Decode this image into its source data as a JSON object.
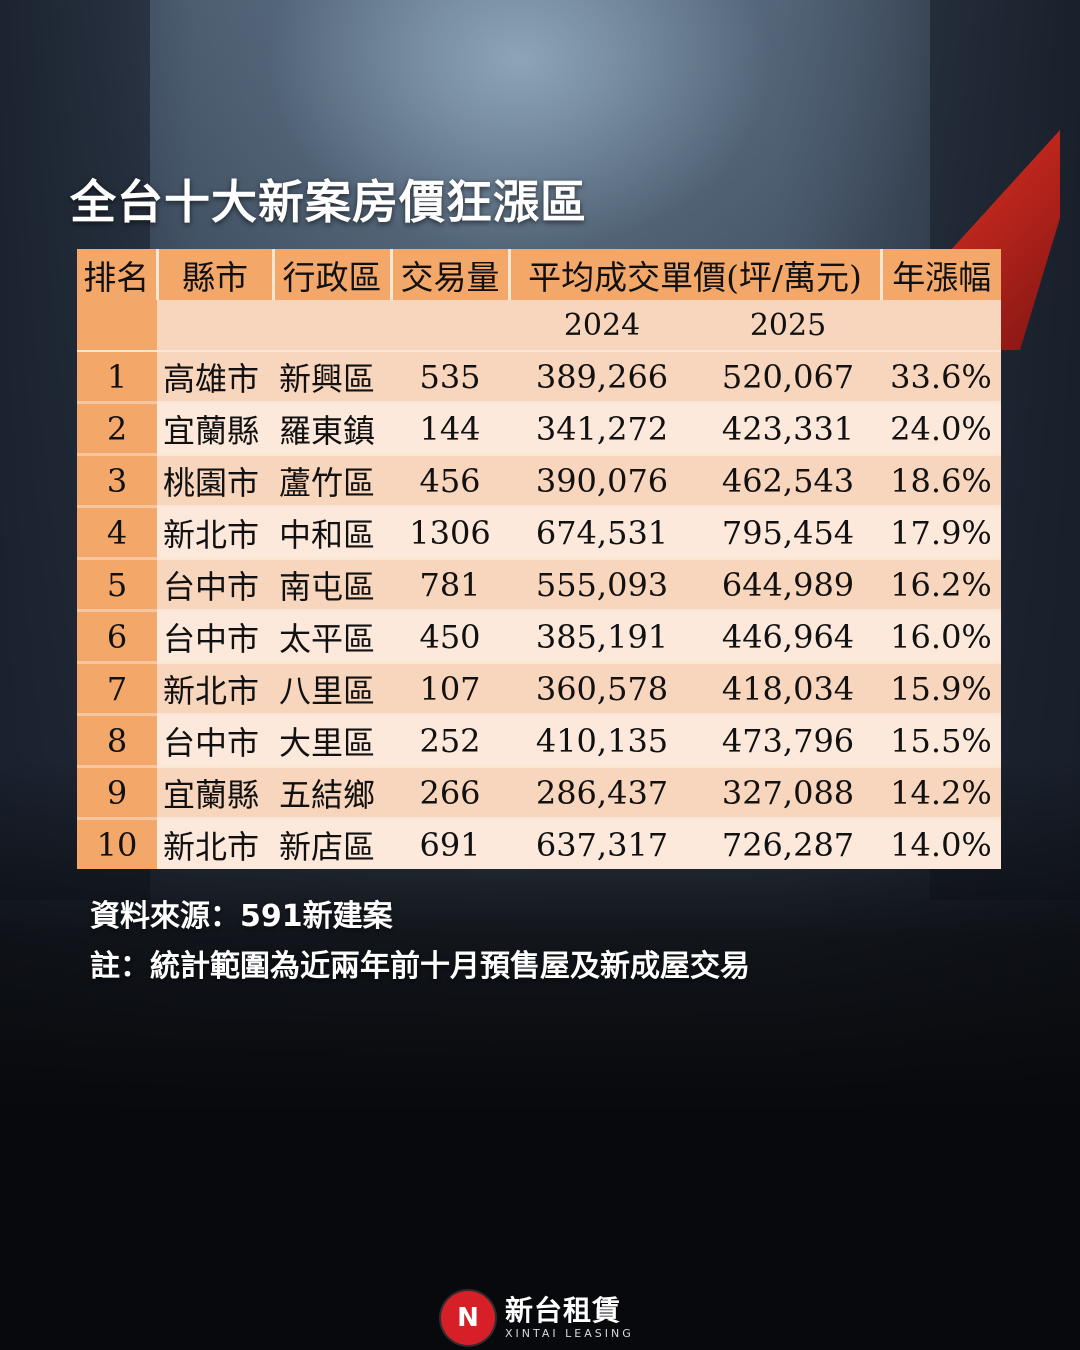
{
  "title": "全台十大新案房價狂漲區",
  "table": {
    "headers": [
      "排名",
      "縣市",
      "行政區",
      "交易量",
      "平均成交單價(坪/萬元)",
      "年漲幅"
    ],
    "years": [
      "2024",
      "2025"
    ],
    "rows": [
      {
        "rank": "1",
        "city": "高雄市",
        "district": "新興區",
        "volume": "535",
        "p2024": "389,266",
        "p2025": "520,067",
        "growth": "33.6%"
      },
      {
        "rank": "2",
        "city": "宜蘭縣",
        "district": "羅東鎮",
        "volume": "144",
        "p2024": "341,272",
        "p2025": "423,331",
        "growth": "24.0%"
      },
      {
        "rank": "3",
        "city": "桃園市",
        "district": "蘆竹區",
        "volume": "456",
        "p2024": "390,076",
        "p2025": "462,543",
        "growth": "18.6%"
      },
      {
        "rank": "4",
        "city": "新北市",
        "district": "中和區",
        "volume": "1306",
        "p2024": "674,531",
        "p2025": "795,454",
        "growth": "17.9%"
      },
      {
        "rank": "5",
        "city": "台中市",
        "district": "南屯區",
        "volume": "781",
        "p2024": "555,093",
        "p2025": "644,989",
        "growth": "16.2%"
      },
      {
        "rank": "6",
        "city": "台中市",
        "district": "太平區",
        "volume": "450",
        "p2024": "385,191",
        "p2025": "446,964",
        "growth": "16.0%"
      },
      {
        "rank": "7",
        "city": "新北市",
        "district": "八里區",
        "volume": "107",
        "p2024": "360,578",
        "p2025": "418,034",
        "growth": "15.9%"
      },
      {
        "rank": "8",
        "city": "台中市",
        "district": "大里區",
        "volume": "252",
        "p2024": "410,135",
        "p2025": "473,796",
        "growth": "15.5%"
      },
      {
        "rank": "9",
        "city": "宜蘭縣",
        "district": "五結鄉",
        "volume": "266",
        "p2024": "286,437",
        "p2025": "327,088",
        "growth": "14.2%"
      },
      {
        "rank": "10",
        "city": "新北市",
        "district": "新店區",
        "volume": "691",
        "p2024": "637,317",
        "p2025": "726,287",
        "growth": "14.0%"
      }
    ]
  },
  "notes": {
    "source": "資料來源：591新建案",
    "remark": "註：統計範圍為近兩年前十月預售屋及新成屋交易"
  },
  "logo": {
    "mark": "N",
    "name_cn": "新台租賃",
    "name_en": "XINTAI LEASING",
    "brand_color": "#d61f26"
  },
  "colors": {
    "header_orange": "#f3a86a",
    "row_peach": "#f8d5bd",
    "row_light": "#fde9dc"
  }
}
